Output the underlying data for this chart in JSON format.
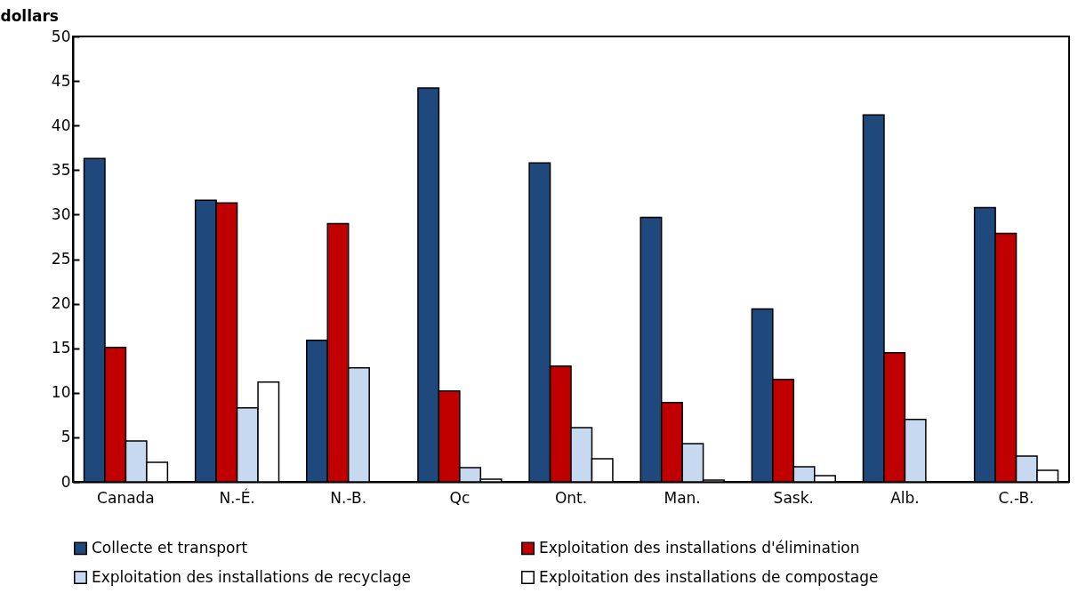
{
  "chart_data": {
    "type": "bar",
    "ylabel": "dollars",
    "categories": [
      "Canada",
      "N.-É.",
      "N.-B.",
      "Qc",
      "Ont.",
      "Man.",
      "Sask.",
      "Alb.",
      "C.-B."
    ],
    "series": [
      {
        "name": "Collecte et transport",
        "color": "#1f497d",
        "values": [
          36.3,
          31.6,
          15.9,
          44.2,
          35.8,
          29.7,
          19.4,
          41.2,
          30.8
        ]
      },
      {
        "name": "Exploitation des installations d'élimination",
        "color": "#c00000",
        "values": [
          15.1,
          31.3,
          29.0,
          10.2,
          13.0,
          8.9,
          11.5,
          14.5,
          27.9
        ]
      },
      {
        "name": "Exploitation des installations de recyclage",
        "color": "#c6d9f1",
        "values": [
          4.6,
          8.3,
          12.8,
          1.6,
          6.1,
          4.3,
          1.7,
          7.0,
          2.9
        ]
      },
      {
        "name": "Exploitation des installations de compostage",
        "color": "#ffffff",
        "values": [
          2.2,
          11.2,
          null,
          0.3,
          2.6,
          0.2,
          0.7,
          null,
          1.3
        ]
      }
    ],
    "ylim": [
      0,
      50
    ],
    "yticks": [
      0,
      5,
      10,
      15,
      20,
      25,
      30,
      35,
      40,
      45,
      50
    ],
    "grid": false,
    "legend": "bottom"
  }
}
